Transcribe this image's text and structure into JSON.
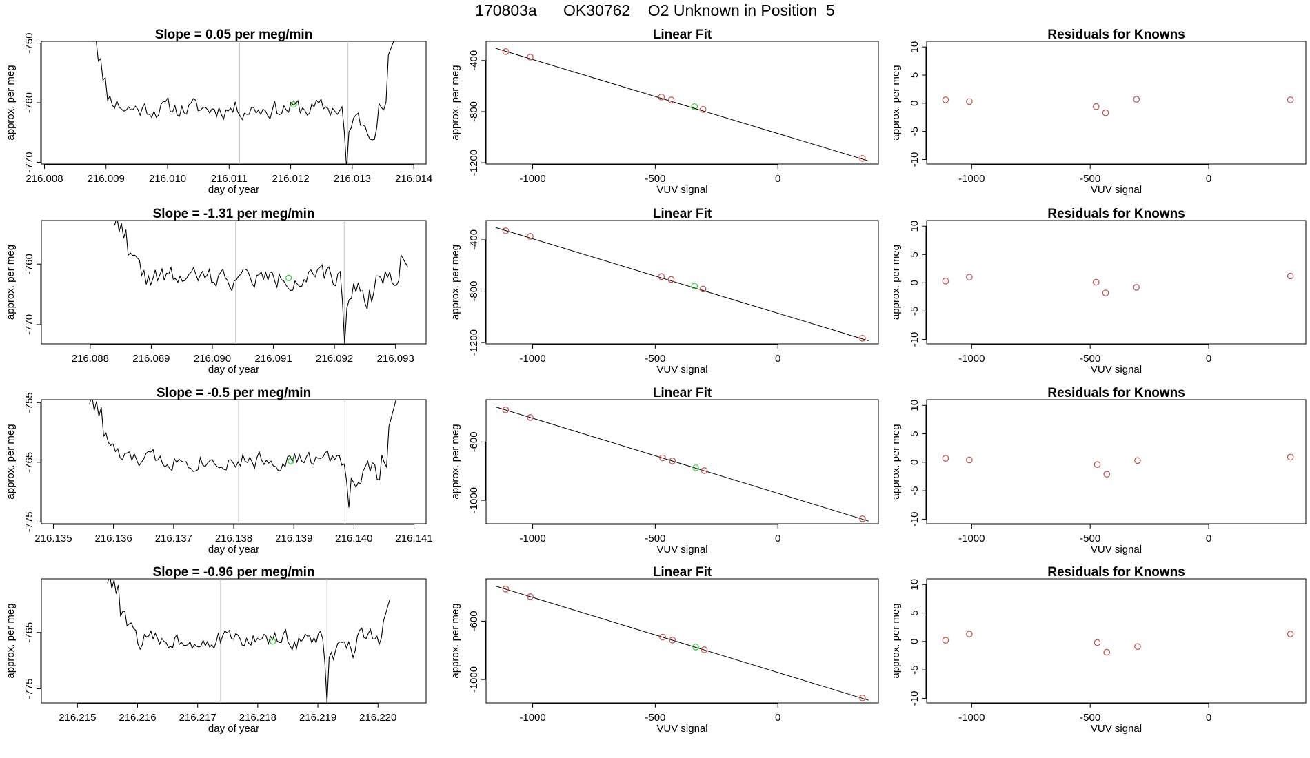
{
  "page": {
    "suptitle": "170803a      OK30762    O2 Unknown in Position  5"
  },
  "colors": {
    "line": "#000000",
    "known_point": "#c0504d",
    "unknown_point": "#33cc33",
    "reference_line": "#c8c8c8",
    "frame": "#000000"
  },
  "chart_data": [
    {
      "row": 0,
      "type": "line",
      "title": "Slope =  0.05  per meg/min",
      "xlabel": "day of year",
      "ylabel": "approx. per meg",
      "xlim": [
        216.00795,
        216.0142
      ],
      "ylim": [
        -770.3,
        -749.7
      ],
      "xticks": [
        216.008,
        216.009,
        216.01,
        216.011,
        216.012,
        216.013,
        216.014
      ],
      "xtick_labels": [
        "216.008",
        "216.009",
        "216.010",
        "216.011",
        "216.012",
        "216.013",
        "216.014"
      ],
      "yticks": [
        -770,
        -760,
        -750
      ],
      "ytick_labels": [
        "-770",
        "-760",
        "-750"
      ],
      "vlines": [
        216.01117,
        216.01293
      ],
      "unknown_point": {
        "x": 216.01205,
        "y": -760.3
      },
      "series": [
        {
          "name": "signal",
          "seed": 11,
          "x_start": 216.0088,
          "x_end": 216.0137,
          "base": -761.0,
          "noise": 1.6,
          "start_spike": [
            -749.0,
            -757.0
          ],
          "end_spike": [
            -752.0,
            -749.0
          ],
          "dip": {
            "x": 216.01292,
            "y": -771.0
          }
        }
      ]
    },
    {
      "row": 0,
      "type": "scatter",
      "title": "Linear Fit",
      "xlabel": "VUV signal",
      "ylabel": "approx. per meg",
      "xlim": [
        -1190,
        410
      ],
      "ylim": [
        -1210,
        -250
      ],
      "xticks": [
        -1000,
        -500,
        0
      ],
      "xtick_labels": [
        "-1000",
        "-500",
        "0"
      ],
      "yticks": [
        -1200,
        -800,
        -400
      ],
      "ytick_labels": [
        "-1200",
        "-800",
        "-400"
      ],
      "fit_line": {
        "x1": -1150,
        "y1": -305,
        "x2": 370,
        "y2": -1186
      },
      "points_known": [
        {
          "x": -1110,
          "y": -330
        },
        {
          "x": -1010,
          "y": -373
        },
        {
          "x": -475,
          "y": -686
        },
        {
          "x": -435,
          "y": -709
        },
        {
          "x": -305,
          "y": -783
        },
        {
          "x": 345,
          "y": -1166
        }
      ],
      "points_unknown": [
        {
          "x": -340,
          "y": -761
        }
      ]
    },
    {
      "row": 0,
      "type": "scatter",
      "title": "Residuals for Knowns",
      "xlabel": "VUV signal",
      "ylabel": "approx. per meg",
      "xlim": [
        -1190,
        410
      ],
      "ylim": [
        -10.8,
        11
      ],
      "xticks": [
        -1000,
        -500,
        0
      ],
      "xtick_labels": [
        "-1000",
        "-500",
        "0"
      ],
      "yticks": [
        -10,
        -5,
        0,
        5,
        10
      ],
      "ytick_labels": [
        "-10",
        "-5",
        "0",
        "5",
        "10"
      ],
      "points_known": [
        {
          "x": -1110,
          "y": 0.6
        },
        {
          "x": -1010,
          "y": 0.3
        },
        {
          "x": -475,
          "y": -0.6
        },
        {
          "x": -435,
          "y": -1.7
        },
        {
          "x": -305,
          "y": 0.7
        },
        {
          "x": 345,
          "y": 0.6
        }
      ]
    },
    {
      "row": 1,
      "type": "line",
      "title": "Slope =  -1.31  per meg/min",
      "xlabel": "day of year",
      "ylabel": "approx. per meg",
      "xlim": [
        216.0872,
        216.0935
      ],
      "ylim": [
        -773.2,
        -752.8
      ],
      "xticks": [
        216.088,
        216.089,
        216.09,
        216.091,
        216.092,
        216.093
      ],
      "xtick_labels": [
        "216.088",
        "216.089",
        "216.090",
        "216.091",
        "216.092",
        "216.093"
      ],
      "yticks": [
        -770,
        -760
      ],
      "ytick_labels": [
        "-770",
        "-760"
      ],
      "vlines": [
        216.09038,
        216.09216
      ],
      "unknown_point": {
        "x": 216.09125,
        "y": -762.3
      },
      "series": [
        {
          "name": "signal",
          "seed": 22,
          "x_start": 216.0884,
          "x_end": 216.0932,
          "base": -762.3,
          "noise": 1.7,
          "start_spike": [
            -752.8,
            -755.5
          ],
          "end_spike": [
            -758.5,
            -760.5
          ],
          "dip": {
            "x": 216.09216,
            "y": -773.2
          }
        }
      ]
    },
    {
      "row": 1,
      "type": "scatter",
      "title": "Linear Fit",
      "xlabel": "VUV signal",
      "ylabel": "approx. per meg",
      "xlim": [
        -1190,
        410
      ],
      "ylim": [
        -1210,
        -250
      ],
      "xticks": [
        -1000,
        -500,
        0
      ],
      "xtick_labels": [
        "-1000",
        "-500",
        "0"
      ],
      "yticks": [
        -1200,
        -800,
        -400
      ],
      "ytick_labels": [
        "-1200",
        "-800",
        "-400"
      ],
      "fit_line": {
        "x1": -1150,
        "y1": -305,
        "x2": 370,
        "y2": -1186
      },
      "points_known": [
        {
          "x": -1110,
          "y": -330
        },
        {
          "x": -1010,
          "y": -373
        },
        {
          "x": -475,
          "y": -686
        },
        {
          "x": -435,
          "y": -709
        },
        {
          "x": -305,
          "y": -783
        },
        {
          "x": 345,
          "y": -1166
        }
      ],
      "points_unknown": [
        {
          "x": -340,
          "y": -761
        }
      ]
    },
    {
      "row": 1,
      "type": "scatter",
      "title": "Residuals for Knowns",
      "xlabel": "VUV signal",
      "ylabel": "approx. per meg",
      "xlim": [
        -1190,
        410
      ],
      "ylim": [
        -10.8,
        11
      ],
      "xticks": [
        -1000,
        -500,
        0
      ],
      "xtick_labels": [
        "-1000",
        "-500",
        "0"
      ],
      "yticks": [
        -10,
        -5,
        0,
        5,
        10
      ],
      "ytick_labels": [
        "-10",
        "-5",
        "0",
        "5",
        "10"
      ],
      "points_known": [
        {
          "x": -1110,
          "y": 0.3
        },
        {
          "x": -1010,
          "y": 1.0
        },
        {
          "x": -475,
          "y": 0.1
        },
        {
          "x": -435,
          "y": -1.8
        },
        {
          "x": -305,
          "y": -0.8
        },
        {
          "x": 345,
          "y": 1.2
        }
      ]
    },
    {
      "row": 2,
      "type": "line",
      "title": "Slope =  -0.5  per meg/min",
      "xlabel": "day of year",
      "ylabel": "approx. per meg",
      "xlim": [
        216.1348,
        216.1412
      ],
      "ylim": [
        -775.3,
        -754.5
      ],
      "xticks": [
        216.135,
        216.136,
        216.137,
        216.138,
        216.139,
        216.14,
        216.141
      ],
      "xtick_labels": [
        "216.135",
        "216.136",
        "216.137",
        "216.138",
        "216.139",
        "216.140",
        "216.141"
      ],
      "yticks": [
        -775,
        -765,
        -755
      ],
      "ytick_labels": [
        "-775",
        "-765",
        "-755"
      ],
      "vlines": [
        216.13808,
        216.13985
      ],
      "unknown_point": {
        "x": 216.13895,
        "y": -764.8
      },
      "series": [
        {
          "name": "signal",
          "seed": 33,
          "x_start": 216.1356,
          "x_end": 216.1407,
          "base": -764.6,
          "noise": 1.5,
          "start_spike": [
            -754.5,
            -757.0
          ],
          "end_spike": [
            -759.0,
            -754.5
          ],
          "dip": {
            "x": 216.13993,
            "y": -772.6
          }
        }
      ]
    },
    {
      "row": 2,
      "type": "scatter",
      "title": "Linear Fit",
      "xlabel": "VUV signal",
      "ylabel": "approx. per meg",
      "xlim": [
        -1190,
        410
      ],
      "ylim": [
        -1160,
        -310
      ],
      "xticks": [
        -1000,
        -500,
        0
      ],
      "xtick_labels": [
        "-1000",
        "-500",
        "0"
      ],
      "yticks": [
        -1000,
        -600
      ],
      "ytick_labels": [
        "-1000",
        "-600"
      ],
      "fit_line": {
        "x1": -1150,
        "y1": -360,
        "x2": 370,
        "y2": -1142
      },
      "points_known": [
        {
          "x": -1110,
          "y": -380
        },
        {
          "x": -1010,
          "y": -432
        },
        {
          "x": -470,
          "y": -709
        },
        {
          "x": -430,
          "y": -730
        },
        {
          "x": -300,
          "y": -796
        },
        {
          "x": 345,
          "y": -1126
        }
      ],
      "points_unknown": [
        {
          "x": -335,
          "y": -777
        }
      ]
    },
    {
      "row": 2,
      "type": "scatter",
      "title": "Residuals for Knowns",
      "xlabel": "VUV signal",
      "ylabel": "approx. per meg",
      "xlim": [
        -1190,
        410
      ],
      "ylim": [
        -10.8,
        11
      ],
      "xticks": [
        -1000,
        -500,
        0
      ],
      "xtick_labels": [
        "-1000",
        "-500",
        "0"
      ],
      "yticks": [
        -10,
        -5,
        0,
        5,
        10
      ],
      "ytick_labels": [
        "-10",
        "-5",
        "0",
        "5",
        "10"
      ],
      "points_known": [
        {
          "x": -1110,
          "y": 0.7
        },
        {
          "x": -1010,
          "y": 0.4
        },
        {
          "x": -470,
          "y": -0.4
        },
        {
          "x": -430,
          "y": -2.1
        },
        {
          "x": -300,
          "y": 0.3
        },
        {
          "x": 345,
          "y": 0.9
        }
      ]
    },
    {
      "row": 3,
      "type": "line",
      "title": "Slope =  -0.96  per meg/min",
      "xlabel": "day of year",
      "ylabel": "approx. per meg",
      "xlim": [
        216.2144,
        216.2208
      ],
      "ylim": [
        -777.5,
        -755.5
      ],
      "xticks": [
        216.215,
        216.216,
        216.217,
        216.218,
        216.219,
        216.22
      ],
      "xtick_labels": [
        "216.215",
        "216.216",
        "216.217",
        "216.218",
        "216.219",
        "216.220"
      ],
      "yticks": [
        -775,
        -765
      ],
      "ytick_labels": [
        "-775",
        "-765"
      ],
      "vlines": [
        216.21738,
        216.21915
      ],
      "unknown_point": {
        "x": 216.21825,
        "y": -766.6
      },
      "series": [
        {
          "name": "signal",
          "seed": 44,
          "x_start": 216.2155,
          "x_end": 216.2202,
          "base": -766.3,
          "noise": 1.6,
          "start_spike": [
            -755.5,
            -757.8
          ],
          "end_spike": [
            -763.0,
            -759.0
          ],
          "dip": {
            "x": 216.21915,
            "y": -777.5
          }
        }
      ]
    },
    {
      "row": 3,
      "type": "scatter",
      "title": "Linear Fit",
      "xlabel": "VUV signal",
      "ylabel": "approx. per meg",
      "xlim": [
        -1190,
        410
      ],
      "ylim": [
        -1160,
        -310
      ],
      "xticks": [
        -1000,
        -500,
        0
      ],
      "xtick_labels": [
        "-1000",
        "-500",
        "0"
      ],
      "yticks": [
        -1000,
        -600
      ],
      "ytick_labels": [
        "-1000",
        "-600"
      ],
      "fit_line": {
        "x1": -1150,
        "y1": -360,
        "x2": 370,
        "y2": -1142
      },
      "points_known": [
        {
          "x": -1110,
          "y": -380
        },
        {
          "x": -1010,
          "y": -432
        },
        {
          "x": -470,
          "y": -709
        },
        {
          "x": -430,
          "y": -730
        },
        {
          "x": -300,
          "y": -796
        },
        {
          "x": 345,
          "y": -1126
        }
      ],
      "points_unknown": [
        {
          "x": -335,
          "y": -777
        }
      ]
    },
    {
      "row": 3,
      "type": "scatter",
      "title": "Residuals for Knowns",
      "xlabel": "VUV signal",
      "ylabel": "approx. per meg",
      "xlim": [
        -1190,
        410
      ],
      "ylim": [
        -10.8,
        11
      ],
      "xticks": [
        -1000,
        -500,
        0
      ],
      "xtick_labels": [
        "-1000",
        "-500",
        "0"
      ],
      "yticks": [
        -10,
        -5,
        0,
        5,
        10
      ],
      "ytick_labels": [
        "-10",
        "-5",
        "0",
        "5",
        "10"
      ],
      "points_known": [
        {
          "x": -1110,
          "y": 0.2
        },
        {
          "x": -1010,
          "y": 1.3
        },
        {
          "x": -470,
          "y": -0.2
        },
        {
          "x": -430,
          "y": -1.9
        },
        {
          "x": -300,
          "y": -0.9
        },
        {
          "x": 345,
          "y": 1.3
        }
      ]
    }
  ]
}
